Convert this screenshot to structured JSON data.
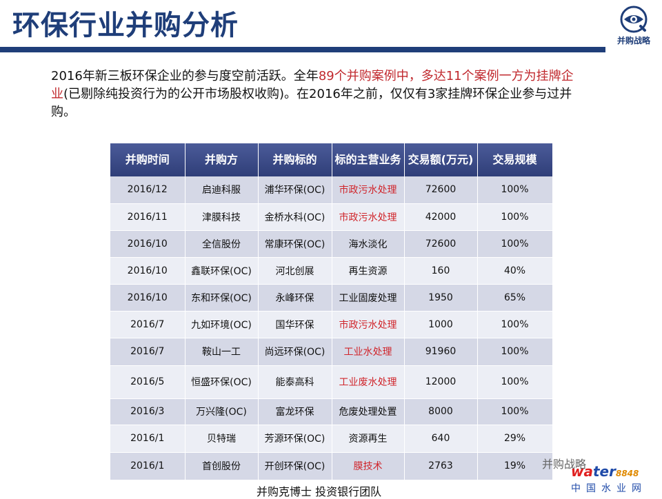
{
  "page": {
    "title": "环保行业并购分析",
    "logo_text": "并购战略",
    "intro": {
      "p1": "2016年新三板环保企业的参与度空前活跃。全年",
      "p2": "89个并购案例中，多达11个案例一方为挂牌企业",
      "p3": "(已剔除纯投资行为的公开市场股权收购)。在2016年之前，仅仅有3家挂牌环保企业参与过并购。"
    },
    "footer": "并购克博士 投资银行团队",
    "watermark": "并购战略",
    "brand": {
      "main_red": "wa",
      "main_blue": "ter",
      "num": "8848",
      "sub": "中国水业网"
    }
  },
  "table": {
    "headers": [
      "并购时间",
      "并购方",
      "并购标的",
      "标的主营业务",
      "交易额(万元)",
      "交易规模"
    ],
    "rows": [
      {
        "date": "2016/12",
        "acquirer": "启迪科服",
        "target": "浦华环保(OC)",
        "business": "市政污水处理",
        "amount": "72600",
        "scale": "100%",
        "red": true
      },
      {
        "date": "2016/11",
        "acquirer": "津膜科技",
        "target": "金桥水科(OC)",
        "business": "市政污水处理",
        "amount": "42000",
        "scale": "100%",
        "red": true
      },
      {
        "date": "2016/10",
        "acquirer": "全信股份",
        "target": "常康环保(OC)",
        "business": "海水淡化",
        "amount": "72600",
        "scale": "100%",
        "red": false
      },
      {
        "date": "2016/10",
        "acquirer": "鑫联环保(OC)",
        "target": "河北创展",
        "business": "再生资源",
        "amount": "160",
        "scale": "40%",
        "red": false
      },
      {
        "date": "2016/10",
        "acquirer": "东和环保(OC)",
        "target": "永峰环保",
        "business": "工业固废处理",
        "amount": "1950",
        "scale": "65%",
        "red": false
      },
      {
        "date": "2016/7",
        "acquirer": "九如环境(OC)",
        "target": "国华环保",
        "business": "市政污水处理",
        "amount": "1000",
        "scale": "100%",
        "red": true
      },
      {
        "date": "2016/7",
        "acquirer": "鞍山一工",
        "target": "尚远环保(OC)",
        "business": "工业水处理",
        "amount": "91960",
        "scale": "100%",
        "red": true
      },
      {
        "date": "2016/5",
        "acquirer": "恒盛环保(OC)",
        "target": "能泰高科",
        "business": "工业废水处理",
        "amount": "12000",
        "scale": "100%",
        "red": true
      },
      {
        "date": "2016/3",
        "acquirer": "万兴隆(OC)",
        "target": "富龙环保",
        "business": "危废处理处置",
        "amount": "8000",
        "scale": "100%",
        "red": false
      },
      {
        "date": "2016/1",
        "acquirer": "贝特瑞",
        "target": "芳源环保(OC)",
        "business": "资源再生",
        "amount": "640",
        "scale": "29%",
        "red": false
      },
      {
        "date": "2016/1",
        "acquirer": "首创股份",
        "target": "开创环保(OC)",
        "business": "膜技术",
        "amount": "2763",
        "scale": "19%",
        "red": true
      }
    ]
  },
  "colors": {
    "title": "#1f3e79",
    "header": "#3a4a85",
    "red": "#d0262c",
    "row_odd": "#d5d8e6",
    "row_even": "#eceef5"
  },
  "icons": {
    "logo": "eye-icon"
  }
}
